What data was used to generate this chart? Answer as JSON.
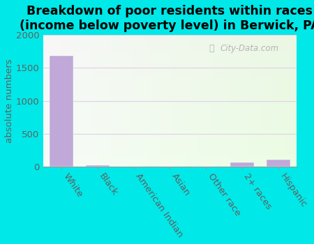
{
  "title": "Breakdown of poor residents within races\n(income below poverty level) in Berwick, PA",
  "categories": [
    "White",
    "Black",
    "American Indian",
    "Asian",
    "Other race",
    "2+ races",
    "Hispanic"
  ],
  "values": [
    1680,
    30,
    5,
    0,
    0,
    65,
    110
  ],
  "bar_color": "#c0a8d8",
  "ylim": [
    0,
    2000
  ],
  "yticks": [
    0,
    500,
    1000,
    1500,
    2000
  ],
  "ylabel": "absolute numbers",
  "outer_bg": "#00e8e8",
  "title_fontsize": 12.5,
  "tick_fontsize": 9.5,
  "ylabel_fontsize": 9.5,
  "watermark": "City-Data.com",
  "grid_color": "#e0d0e8",
  "ytick_color": "#606060",
  "xtick_color": "#606060"
}
